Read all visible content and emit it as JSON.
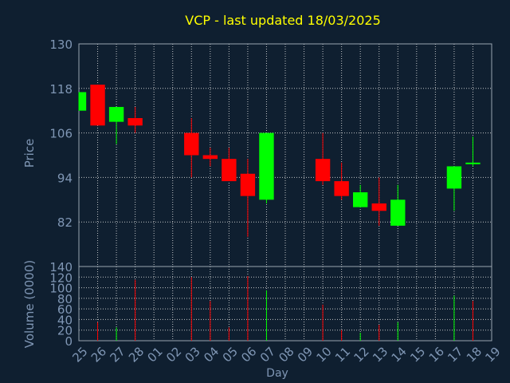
{
  "colors": {
    "background": "#0f1f30",
    "axis": "#9aa5b1",
    "grid": "#e0e0e0",
    "label": "#7f96b4",
    "title": "#ffff00",
    "up": "#00ff00",
    "down": "#ff0000"
  },
  "chart_data": {
    "type": "candlestick",
    "title": "VCP - last updated 18/03/2025",
    "xlabel": "Day",
    "price_label": "Price",
    "volume_label": "Volume (0000)",
    "x_ticks": [
      "25",
      "26",
      "27",
      "28",
      "01",
      "02",
      "03",
      "04",
      "05",
      "06",
      "07",
      "08",
      "09",
      "10",
      "11",
      "12",
      "13",
      "14",
      "15",
      "16",
      "17",
      "18",
      "19"
    ],
    "price_ylim": [
      70,
      130
    ],
    "price_ticks": [
      130,
      118,
      106,
      94,
      82
    ],
    "volume_ylim": [
      0,
      140
    ],
    "volume_ticks": [
      140,
      120,
      100,
      80,
      60,
      40,
      20,
      0
    ],
    "grid": true,
    "candles": [
      {
        "day": "25",
        "open": 112,
        "high": 117,
        "low": 112,
        "close": 117
      },
      {
        "day": "26",
        "open": 119,
        "high": 119,
        "low": 108,
        "close": 108
      },
      {
        "day": "27",
        "open": 109,
        "high": 113,
        "low": 103,
        "close": 113
      },
      {
        "day": "28",
        "open": 110,
        "high": 113,
        "low": 106,
        "close": 108
      },
      {
        "day": "03",
        "open": 106,
        "high": 110,
        "low": 94,
        "close": 100
      },
      {
        "day": "04",
        "open": 100,
        "high": 102,
        "low": 97,
        "close": 99
      },
      {
        "day": "05",
        "open": 99,
        "high": 102,
        "low": 93,
        "close": 93
      },
      {
        "day": "06",
        "open": 95,
        "high": 99,
        "low": 78,
        "close": 89
      },
      {
        "day": "07",
        "open": 88,
        "high": 106,
        "low": 87,
        "close": 106
      },
      {
        "day": "10",
        "open": 99,
        "high": 106,
        "low": 92,
        "close": 93
      },
      {
        "day": "11",
        "open": 93,
        "high": 98,
        "low": 88,
        "close": 89
      },
      {
        "day": "12",
        "open": 86,
        "high": 92,
        "low": 86,
        "close": 90
      },
      {
        "day": "13",
        "open": 87,
        "high": 94,
        "low": 81,
        "close": 85
      },
      {
        "day": "14",
        "open": 81,
        "high": 92,
        "low": 81,
        "close": 88
      },
      {
        "day": "17",
        "open": 91,
        "high": 97,
        "low": 85,
        "close": 97
      },
      {
        "day": "18",
        "open": 98,
        "high": 105,
        "low": 97,
        "close": 98
      }
    ],
    "volume": [
      {
        "day": "26",
        "value": 35,
        "dir": "down"
      },
      {
        "day": "27",
        "value": 25,
        "dir": "up"
      },
      {
        "day": "28",
        "value": 115,
        "dir": "down"
      },
      {
        "day": "03",
        "value": 120,
        "dir": "down"
      },
      {
        "day": "04",
        "value": 75,
        "dir": "down"
      },
      {
        "day": "05",
        "value": 25,
        "dir": "down"
      },
      {
        "day": "06",
        "value": 122,
        "dir": "down"
      },
      {
        "day": "07",
        "value": 95,
        "dir": "up"
      },
      {
        "day": "10",
        "value": 68,
        "dir": "down"
      },
      {
        "day": "11",
        "value": 20,
        "dir": "down"
      },
      {
        "day": "12",
        "value": 15,
        "dir": "up"
      },
      {
        "day": "13",
        "value": 30,
        "dir": "down"
      },
      {
        "day": "14",
        "value": 35,
        "dir": "up"
      },
      {
        "day": "17",
        "value": 85,
        "dir": "up"
      },
      {
        "day": "18",
        "value": 75,
        "dir": "down"
      }
    ]
  }
}
